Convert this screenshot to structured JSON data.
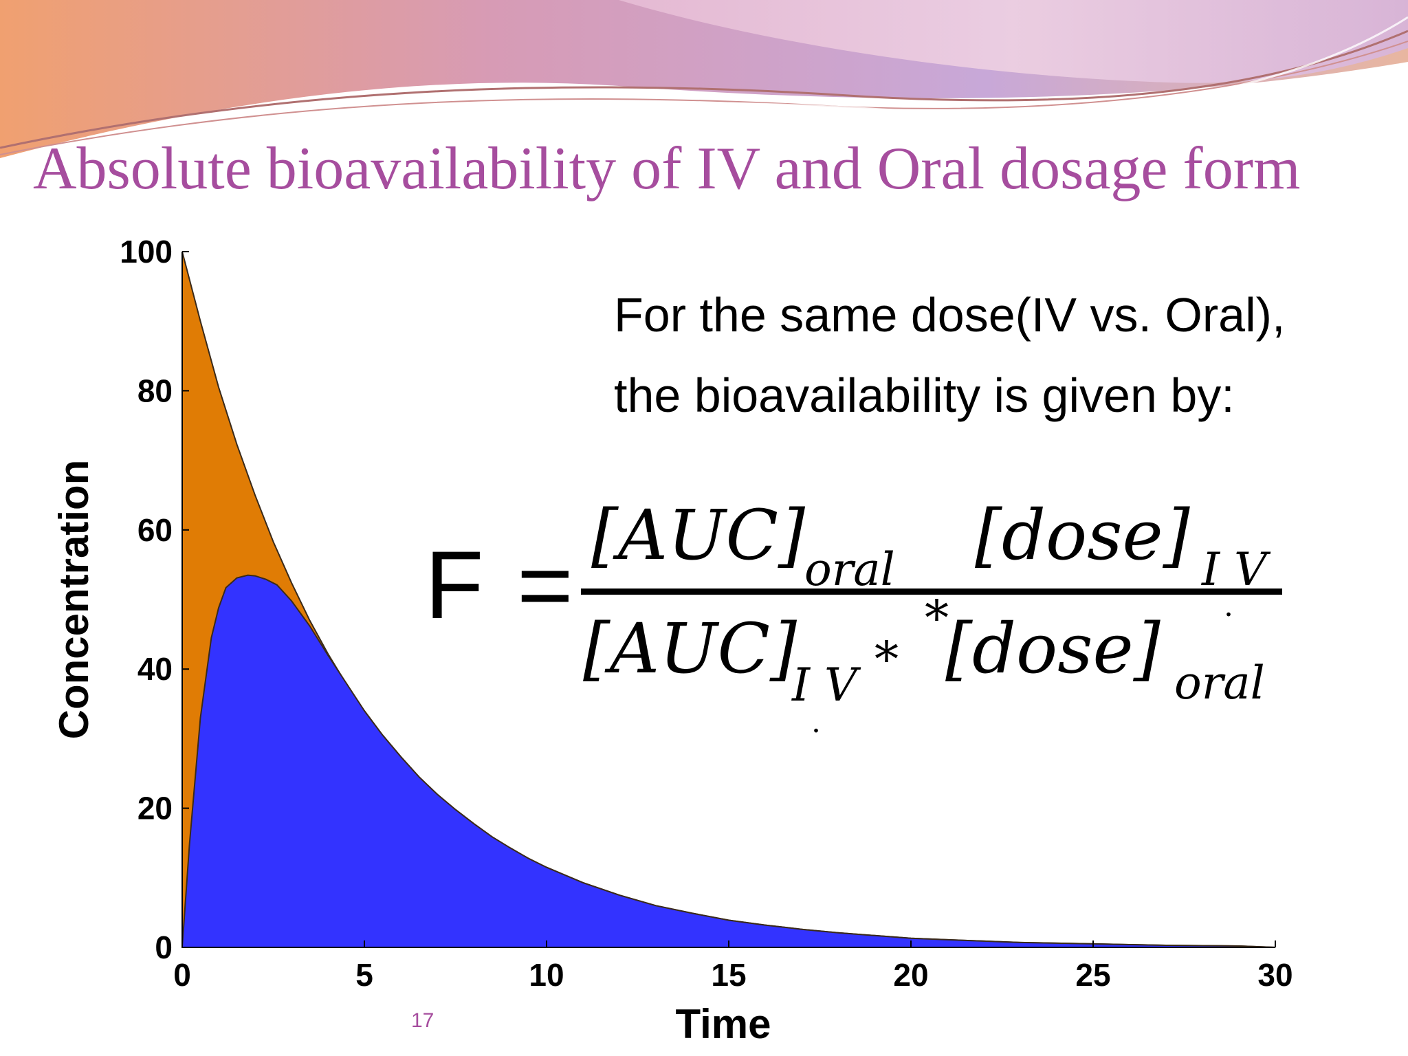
{
  "slide": {
    "title": "Absolute bioavailability of IV and Oral dosage form",
    "description_line_1": "For the same dose(IV vs. Oral),",
    "description_line_2": "the bioavailability is given by:",
    "page_number": "17"
  },
  "formula": {
    "lhs": "F",
    "equals": "=",
    "numerator": {
      "auc": "[AUC]",
      "auc_subscript": "oral",
      "dose": "[dose]",
      "dose_subscript": "I V"
    },
    "denominator": {
      "auc": "[AUC]",
      "auc_subscript": "I V",
      "multiply": "*",
      "dose": "[dose]",
      "dose_subscript": "oral"
    },
    "multiply_between": "*",
    "dot": "."
  },
  "colors": {
    "title": "#a64d9e",
    "iv_area": "#e07c05",
    "oral_area": "#3333ff",
    "outline": "#3a2a1a"
  },
  "chart_data": {
    "type": "area",
    "xlabel": "Time",
    "ylabel": "Concentration",
    "xlim": [
      0,
      30
    ],
    "ylim": [
      0,
      100
    ],
    "xticks": [
      0,
      5,
      10,
      15,
      20,
      25,
      30
    ],
    "yticks": [
      0,
      20,
      40,
      60,
      80,
      100
    ],
    "grid": false,
    "legend": "none",
    "series": [
      {
        "key": "iv",
        "x": [
          0,
          0.5,
          1,
          1.5,
          2,
          2.5,
          3,
          3.5,
          4,
          4.5,
          5,
          5.5,
          6,
          6.5,
          7,
          7.5,
          8,
          8.5,
          9,
          9.5,
          10,
          11,
          12,
          13,
          14,
          15,
          16,
          17,
          18,
          19,
          20,
          21,
          22,
          23,
          24,
          25,
          26,
          27,
          28,
          29,
          30
        ],
        "y": [
          100,
          90,
          80.5,
          72.3,
          65,
          58.3,
          52.4,
          47,
          42.2,
          37.9,
          34,
          30.5,
          27.4,
          24.5,
          22,
          19.8,
          17.8,
          15.9,
          14.3,
          12.8,
          11.5,
          9.3,
          7.5,
          6,
          4.9,
          3.9,
          3.2,
          2.6,
          2.1,
          1.7,
          1.3,
          1.1,
          0.9,
          0.7,
          0.6,
          0.5,
          0.4,
          0.3,
          0.25,
          0.2,
          0
        ]
      },
      {
        "key": "oral",
        "x": [
          0,
          0.2,
          0.5,
          0.8,
          1,
          1.2,
          1.5,
          1.8,
          2,
          2.3,
          2.6,
          3,
          3.5,
          4,
          4.5,
          5,
          5.5,
          6,
          6.5,
          7,
          7.5,
          8,
          8.5,
          9,
          9.5,
          10,
          11,
          12,
          13,
          14,
          15,
          16,
          17,
          18,
          19,
          20,
          21,
          22,
          23,
          24,
          25,
          26,
          27,
          28,
          29,
          30
        ],
        "y": [
          0,
          14.8,
          33,
          44.5,
          48.8,
          51.7,
          53.1,
          53.5,
          53.4,
          52.9,
          52.1,
          49.8,
          46.2,
          42,
          38,
          34,
          30.5,
          27.4,
          24.5,
          22,
          19.8,
          17.8,
          15.9,
          14.3,
          12.8,
          11.5,
          9.3,
          7.5,
          6,
          4.9,
          3.9,
          3.2,
          2.6,
          2.1,
          1.7,
          1.3,
          1.1,
          0.9,
          0.7,
          0.6,
          0.5,
          0.4,
          0.3,
          0.25,
          0.2,
          0
        ]
      }
    ]
  }
}
